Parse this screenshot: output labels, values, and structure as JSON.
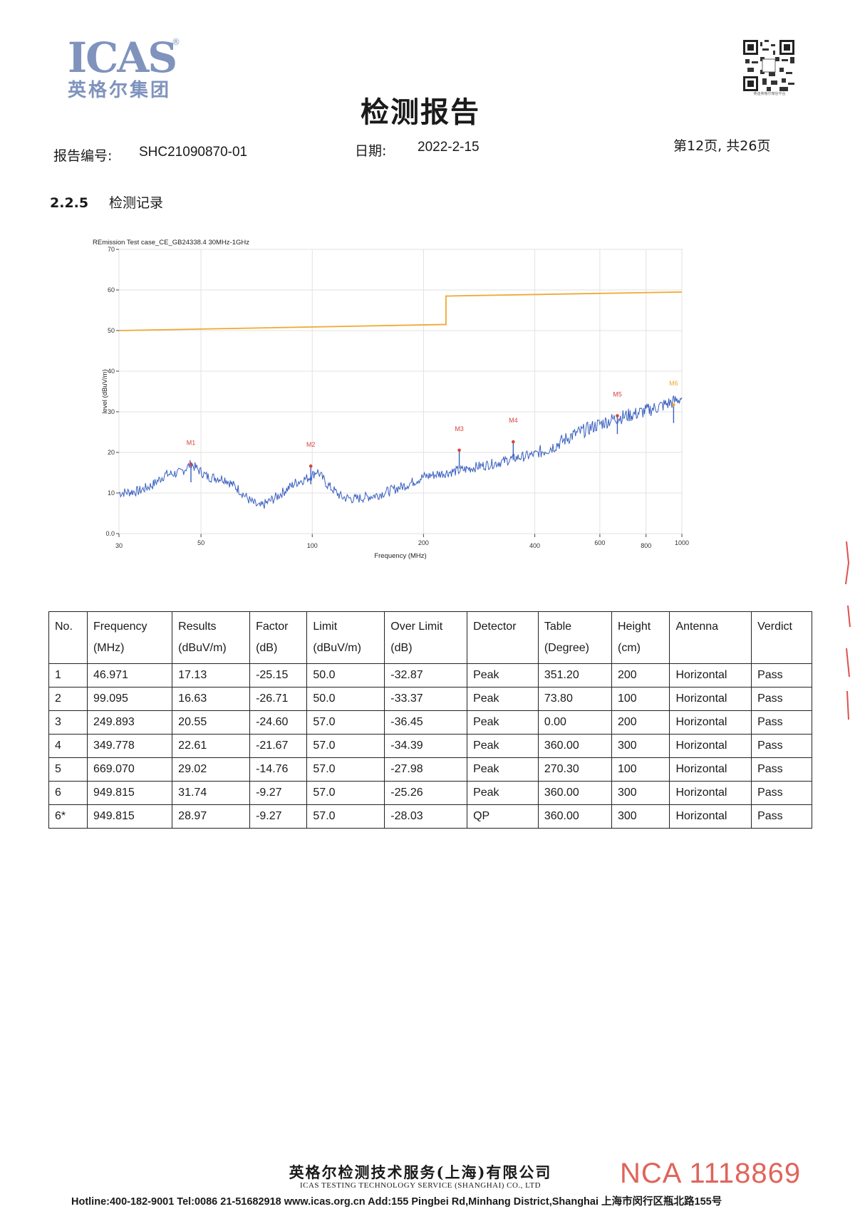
{
  "header": {
    "logo_text": "ICAS",
    "logo_reg": "®",
    "logo_cn": "英格尔集团",
    "qr_caption": "英迪英格尔微信平台",
    "title": "检测报告",
    "report_no_label": "报告编号:",
    "report_no": "SHC21090870-01",
    "date_label": "日期:",
    "date": "2022-2-15",
    "page_info": "第12页, 共26页"
  },
  "section": {
    "number": "2.2.5",
    "title": "检测记录"
  },
  "chart_data": {
    "type": "line",
    "title": "REmission Test case_CE_GB24338.4 30MHz-1GHz",
    "xlabel": "Frequency (MHz)",
    "ylabel": "level (dBuV/m)",
    "x_scale": "log",
    "xlim": [
      30,
      1000
    ],
    "ylim": [
      0,
      70
    ],
    "x_ticks": [
      30,
      50,
      100,
      200,
      400,
      600,
      800,
      1000
    ],
    "x_tick_labels": [
      "30",
      "50",
      "100",
      "200",
      "400",
      "600",
      "800",
      "1000"
    ],
    "y_ticks": [
      0,
      10,
      20,
      30,
      40,
      50,
      60,
      70
    ],
    "y_tick_labels": [
      "0.0",
      "10",
      "20",
      "30",
      "40",
      "50",
      "60",
      "70"
    ],
    "grid": true,
    "limit_line": {
      "color": "#f0a830",
      "points": [
        [
          30,
          50
        ],
        [
          230,
          51.5
        ],
        [
          230,
          58.5
        ],
        [
          1000,
          59.5
        ]
      ]
    },
    "trace": {
      "color": "#3a5fc0",
      "points": [
        [
          30,
          10
        ],
        [
          34,
          10.5
        ],
        [
          37,
          12
        ],
        [
          40,
          14.5
        ],
        [
          44,
          15
        ],
        [
          46.971,
          17.13
        ],
        [
          52,
          14
        ],
        [
          58,
          13.5
        ],
        [
          63,
          11
        ],
        [
          68,
          8
        ],
        [
          72,
          6.5
        ],
        [
          80,
          9
        ],
        [
          90,
          12.5
        ],
        [
          99.095,
          14
        ],
        [
          103,
          15.5
        ],
        [
          110,
          12
        ],
        [
          120,
          9
        ],
        [
          130,
          8.5
        ],
        [
          150,
          9.5
        ],
        [
          180,
          12
        ],
        [
          200,
          14
        ],
        [
          230,
          15
        ],
        [
          249.893,
          15.5
        ],
        [
          280,
          16.5
        ],
        [
          320,
          17.5
        ],
        [
          349.778,
          18.5
        ],
        [
          400,
          19.5
        ],
        [
          450,
          21.5
        ],
        [
          500,
          24
        ],
        [
          600,
          27
        ],
        [
          669.07,
          28.5
        ],
        [
          750,
          29.5
        ],
        [
          850,
          31
        ],
        [
          949.815,
          32.5
        ],
        [
          1000,
          33.5
        ]
      ]
    },
    "markers": [
      {
        "label": "M1",
        "x": 46.971,
        "y": 17.13,
        "color": "#d9433d"
      },
      {
        "label": "M2",
        "x": 99.095,
        "y": 16.63,
        "color": "#d9433d"
      },
      {
        "label": "M3",
        "x": 249.893,
        "y": 20.55,
        "color": "#d9433d"
      },
      {
        "label": "M4",
        "x": 349.778,
        "y": 22.61,
        "color": "#d9433d"
      },
      {
        "label": "M5",
        "x": 669.07,
        "y": 29.02,
        "color": "#d9433d"
      },
      {
        "label": "M6",
        "x": 949.815,
        "y": 31.74,
        "color": "#f0a830"
      }
    ]
  },
  "table": {
    "headers": [
      [
        "No.",
        ""
      ],
      [
        "Frequency",
        "(MHz)"
      ],
      [
        "Results",
        "(dBuV/m)"
      ],
      [
        "Factor",
        "(dB)"
      ],
      [
        "Limit",
        "(dBuV/m)"
      ],
      [
        "Over Limit",
        "(dB)"
      ],
      [
        "Detector",
        ""
      ],
      [
        "Table",
        "(Degree)"
      ],
      [
        "Height",
        "(cm)"
      ],
      [
        "Antenna",
        ""
      ],
      [
        "Verdict",
        ""
      ]
    ],
    "rows": [
      [
        "1",
        "46.971",
        "17.13",
        "-25.15",
        "50.0",
        "-32.87",
        "Peak",
        "351.20",
        "200",
        "Horizontal",
        "Pass"
      ],
      [
        "2",
        "99.095",
        "16.63",
        "-26.71",
        "50.0",
        "-33.37",
        "Peak",
        "73.80",
        "100",
        "Horizontal",
        "Pass"
      ],
      [
        "3",
        "249.893",
        "20.55",
        "-24.60",
        "57.0",
        "-36.45",
        "Peak",
        "0.00",
        "200",
        "Horizontal",
        "Pass"
      ],
      [
        "4",
        "349.778",
        "22.61",
        "-21.67",
        "57.0",
        "-34.39",
        "Peak",
        "360.00",
        "300",
        "Horizontal",
        "Pass"
      ],
      [
        "5",
        "669.070",
        "29.02",
        "-14.76",
        "57.0",
        "-27.98",
        "Peak",
        "270.30",
        "100",
        "Horizontal",
        "Pass"
      ],
      [
        "6",
        "949.815",
        "31.74",
        "-9.27",
        "57.0",
        "-25.26",
        "Peak",
        "360.00",
        "300",
        "Horizontal",
        "Pass"
      ],
      [
        "6*",
        "949.815",
        "28.97",
        "-9.27",
        "57.0",
        "-28.03",
        "QP",
        "360.00",
        "300",
        "Horizontal",
        "Pass"
      ]
    ]
  },
  "footer": {
    "company_cn": "英格尔检测技术服务(上海)有限公司",
    "company_en": "ICAS TESTING TECHNOLOGY SERVICE (SHANGHAI) CO., LTD",
    "contact": "Hotline:400-182-9001  Tel:0086 21-51682918  www.icas.org.cn  Add:155 Pingbei Rd,Minhang District,Shanghai 上海市闵行区瓶北路155号",
    "nca": "NCA 1118869"
  }
}
